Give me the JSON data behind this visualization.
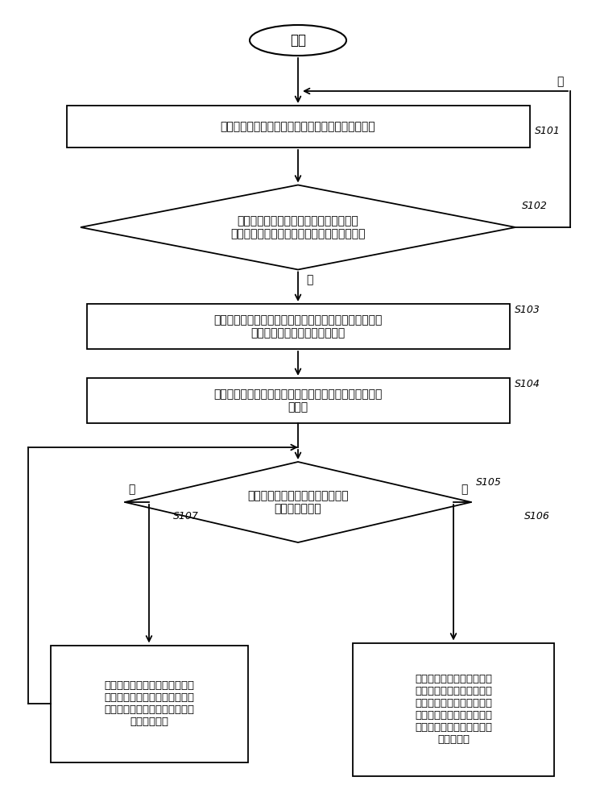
{
  "bg_color": "#ffffff",
  "lc": "#000000",
  "tc": "#000000",
  "slc": "#000000",
  "start_text": "开始",
  "s101_label": "S101",
  "s101_text": "通过调整加热平均功率的方式控制电烹饪器进行加热",
  "s102_label": "S102",
  "s102_text": "检测第一电极与第二电极之间的通断状态\n以判断第一电极与第二电极之间是否发生粘连",
  "s103_label": "S103",
  "s103_text": "如果判断第一电极与第二电极之间发生粘连，保存当前加\n热平均功率为第一加热平均功率",
  "s104_label": "S104",
  "s104_text": "控制电烹饪器停止加热或者减小加热平均功率，计时器开\n始计时",
  "s105_label": "S105",
  "s105_text": "持续检测第一电极与第二电极之间\n是否还发生粘连",
  "s106_label": "S106",
  "s106_text": "经过第一预设时间后，如果\n第一电极与第二电极之间还\n发生粘连，则控制电烹饪器\n以预设的第二加热平均功率\n进行加热，以使电烹饪器处\n于微沸状态",
  "s107_label": "S107",
  "s107_text": "经过第一预设时间后，如果第一\n电极与第二电极之间不粘连，重\n新以第一加热平均功率控制电烹\n饪器进行加热",
  "yes_text": "是",
  "no_text": "否"
}
